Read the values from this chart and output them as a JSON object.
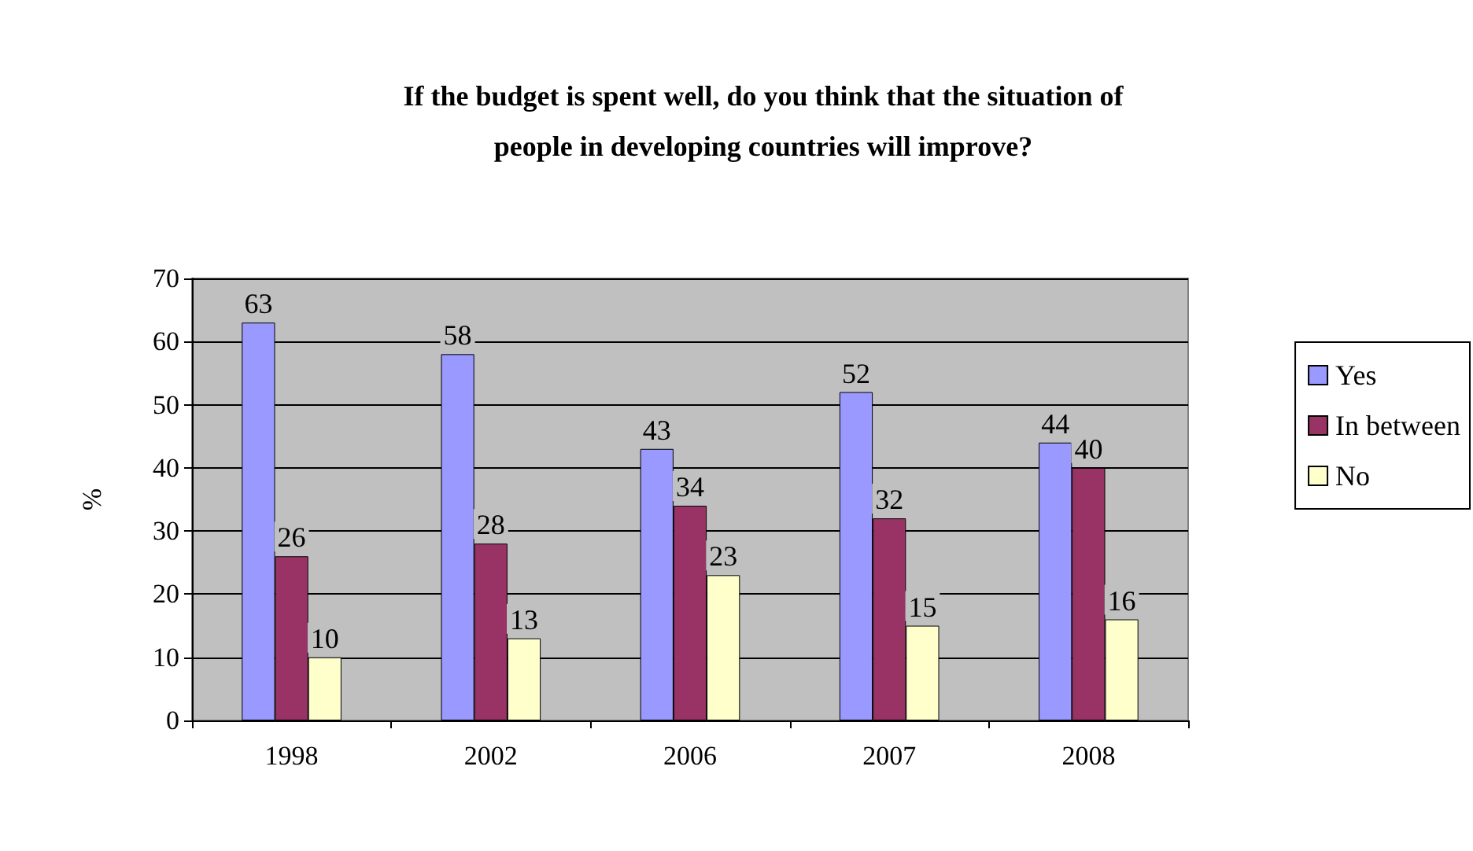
{
  "chart_data": {
    "type": "bar",
    "title": "If the budget is spent well, do you think that the situation of\npeople in developing countries will improve?",
    "ylabel": "%",
    "categories": [
      "1998",
      "2002",
      "2006",
      "2007",
      "2008"
    ],
    "series": [
      {
        "name": "Yes",
        "color": "#9999ff",
        "values": [
          63,
          58,
          43,
          52,
          44
        ]
      },
      {
        "name": "In between",
        "color": "#993366",
        "values": [
          26,
          28,
          34,
          32,
          40
        ]
      },
      {
        "name": "No",
        "color": "#ffffcc",
        "values": [
          10,
          13,
          23,
          15,
          16
        ]
      }
    ],
    "ylim": [
      0,
      70
    ],
    "yticks": [
      0,
      10,
      20,
      30,
      40,
      50,
      60,
      70
    ],
    "grid": "y",
    "legend": "right",
    "data_labels": true
  }
}
